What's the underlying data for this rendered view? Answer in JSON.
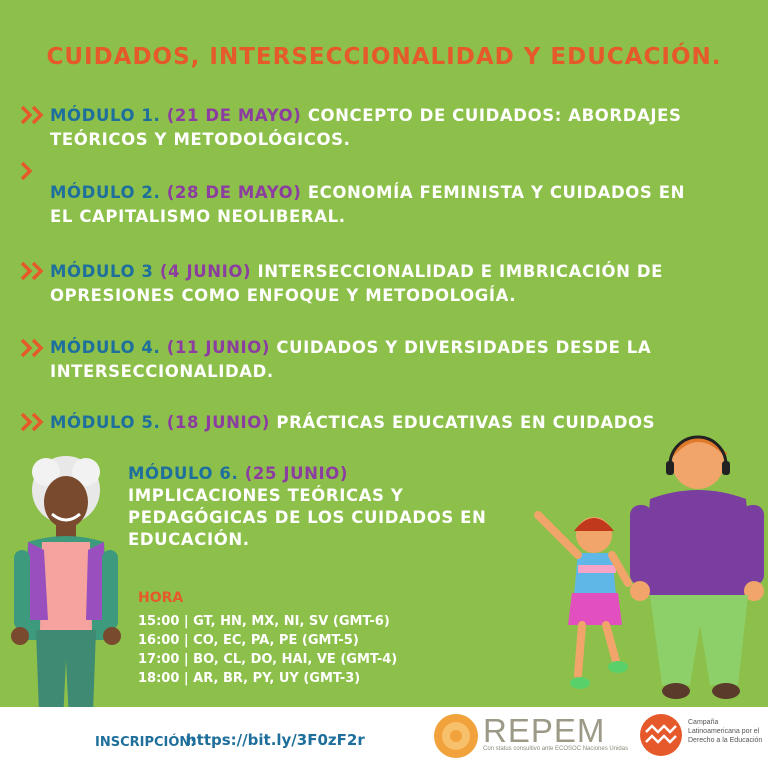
{
  "title": "CUIDADOS, INTERSECCIONALIDAD Y EDUCACIÓN.",
  "modules": [
    {
      "label": "MÓDULO 1.",
      "date": "(21 DE MAYO)",
      "text": "CONCEPTO DE CUIDADOS: ABORDAJES TEÓRICOS Y METODOLÓGICOS."
    },
    {
      "label": "MÓDULO 2.",
      "date": "(28 DE MAYO)",
      "text": "ECONOMÍA FEMINISTA Y CUIDADOS EN EL CAPITALISMO NEOLIBERAL."
    },
    {
      "label": "MÓDULO 3",
      "date": "(4 JUNIO)",
      "text": "INTERSECCIONALIDAD E IMBRICACIÓN DE OPRESIONES COMO ENFOQUE Y METODOLOGÍA."
    },
    {
      "label": "MÓDULO 4.",
      "date": "(11 JUNIO)",
      "text": "CUIDADOS Y DIVERSIDADES DESDE LA INTERSECCIONALIDAD."
    },
    {
      "label": "MÓDULO 5.",
      "date": "(18 JUNIO)",
      "text": "PRÁCTICAS EDUCATIVAS EN CUIDADOS"
    },
    {
      "label": "MÓDULO 6.",
      "date": "(25 JUNIO)",
      "text": "IMPLICACIONES TEÓRICAS Y PEDAGÓGICAS DE LOS CUIDADOS EN EDUCACIÓN."
    }
  ],
  "hora": {
    "title": "HORA",
    "lines": [
      "15:00 | GT, HN, MX, NI, SV (GMT-6)",
      "16:00 | CO, EC, PA, PE (GMT-5)",
      "17:00 | BO, CL, DO, HAI, VE (GMT-4)",
      "18:00 | AR, BR, PY, UY (GMT-3)"
    ]
  },
  "footer": {
    "inscripcion_label": "INSCRIPCIÓN:",
    "inscripcion_url": "https://bit.ly/3F0zF2r",
    "repem_name": "REPEM",
    "repem_subtitle": "Con status consultivo ante ECOSOC Naciones Unidas",
    "campaign_name": "Campaña Latinoamericana por el Derecho a la Educación"
  },
  "colors": {
    "background": "#8dc04a",
    "title": "#e5592a",
    "module_label": "#1f6f9c",
    "module_date": "#8c3ea0",
    "body_text": "#ffffff"
  }
}
